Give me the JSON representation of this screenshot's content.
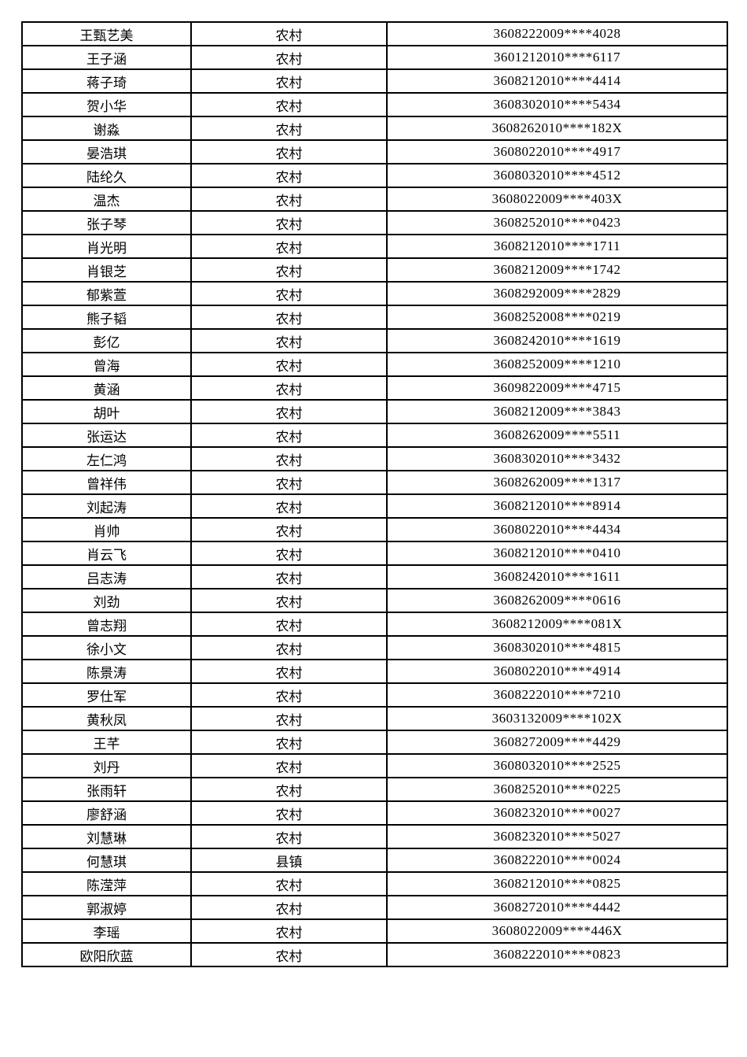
{
  "page": {
    "background_color": "#ffffff",
    "border_color": "#000000",
    "text_color": "#000000"
  },
  "table": {
    "column_keys": [
      "name",
      "residence_type",
      "id_number"
    ],
    "residence_type_values_seen": [
      "农村",
      "县镇"
    ],
    "rows": [
      {
        "name": "王甄艺美",
        "residence_type": "农村",
        "id_number": "3608222009****4028"
      },
      {
        "name": "王子涵",
        "residence_type": "农村",
        "id_number": "3601212010****6117"
      },
      {
        "name": "蒋子琦",
        "residence_type": "农村",
        "id_number": "3608212010****4414"
      },
      {
        "name": "贺小华",
        "residence_type": "农村",
        "id_number": "3608302010****5434"
      },
      {
        "name": "谢淼",
        "residence_type": "农村",
        "id_number": "3608262010****182X"
      },
      {
        "name": "晏浩琪",
        "residence_type": "农村",
        "id_number": "3608022010****4917"
      },
      {
        "name": "陆纶久",
        "residence_type": "农村",
        "id_number": "3608032010****4512"
      },
      {
        "name": "温杰",
        "residence_type": "农村",
        "id_number": "3608022009****403X"
      },
      {
        "name": "张子琴",
        "residence_type": "农村",
        "id_number": "3608252010****0423"
      },
      {
        "name": "肖光明",
        "residence_type": "农村",
        "id_number": "3608212010****1711"
      },
      {
        "name": "肖银芝",
        "residence_type": "农村",
        "id_number": "3608212009****1742"
      },
      {
        "name": "郁紫萱",
        "residence_type": "农村",
        "id_number": "3608292009****2829"
      },
      {
        "name": "熊子韬",
        "residence_type": "农村",
        "id_number": "3608252008****0219"
      },
      {
        "name": "彭亿",
        "residence_type": "农村",
        "id_number": "3608242010****1619"
      },
      {
        "name": "曾海",
        "residence_type": "农村",
        "id_number": "3608252009****1210"
      },
      {
        "name": "黄涵",
        "residence_type": "农村",
        "id_number": "3609822009****4715"
      },
      {
        "name": "胡叶",
        "residence_type": "农村",
        "id_number": "3608212009****3843"
      },
      {
        "name": "张运达",
        "residence_type": "农村",
        "id_number": "3608262009****5511"
      },
      {
        "name": "左仁鸿",
        "residence_type": "农村",
        "id_number": "3608302010****3432"
      },
      {
        "name": "曾祥伟",
        "residence_type": "农村",
        "id_number": "3608262009****1317"
      },
      {
        "name": "刘起涛",
        "residence_type": "农村",
        "id_number": "3608212010****8914"
      },
      {
        "name": "肖帅",
        "residence_type": "农村",
        "id_number": "3608022010****4434"
      },
      {
        "name": "肖云飞",
        "residence_type": "农村",
        "id_number": "3608212010****0410"
      },
      {
        "name": "吕志涛",
        "residence_type": "农村",
        "id_number": "3608242010****1611"
      },
      {
        "name": "刘劲",
        "residence_type": "农村",
        "id_number": "3608262009****0616"
      },
      {
        "name": "曾志翔",
        "residence_type": "农村",
        "id_number": "3608212009****081X"
      },
      {
        "name": "徐小文",
        "residence_type": "农村",
        "id_number": "3608302010****4815"
      },
      {
        "name": "陈景涛",
        "residence_type": "农村",
        "id_number": "3608022010****4914"
      },
      {
        "name": "罗仕军",
        "residence_type": "农村",
        "id_number": "3608222010****7210"
      },
      {
        "name": "黄秋凤",
        "residence_type": "农村",
        "id_number": "3603132009****102X"
      },
      {
        "name": "王芊",
        "residence_type": "农村",
        "id_number": "3608272009****4429"
      },
      {
        "name": "刘丹",
        "residence_type": "农村",
        "id_number": "3608032010****2525"
      },
      {
        "name": "张雨轩",
        "residence_type": "农村",
        "id_number": "3608252010****0225"
      },
      {
        "name": "廖舒涵",
        "residence_type": "农村",
        "id_number": "3608232010****0027"
      },
      {
        "name": "刘慧琳",
        "residence_type": "农村",
        "id_number": "3608232010****5027"
      },
      {
        "name": "何慧琪",
        "residence_type": "县镇",
        "id_number": "3608222010****0024"
      },
      {
        "name": "陈滢萍",
        "residence_type": "农村",
        "id_number": "3608212010****0825"
      },
      {
        "name": "郭淑婷",
        "residence_type": "农村",
        "id_number": "3608272010****4442"
      },
      {
        "name": "李瑶",
        "residence_type": "农村",
        "id_number": "3608022009****446X"
      },
      {
        "name": "欧阳欣蓝",
        "residence_type": "农村",
        "id_number": "3608222010****0823"
      }
    ]
  }
}
